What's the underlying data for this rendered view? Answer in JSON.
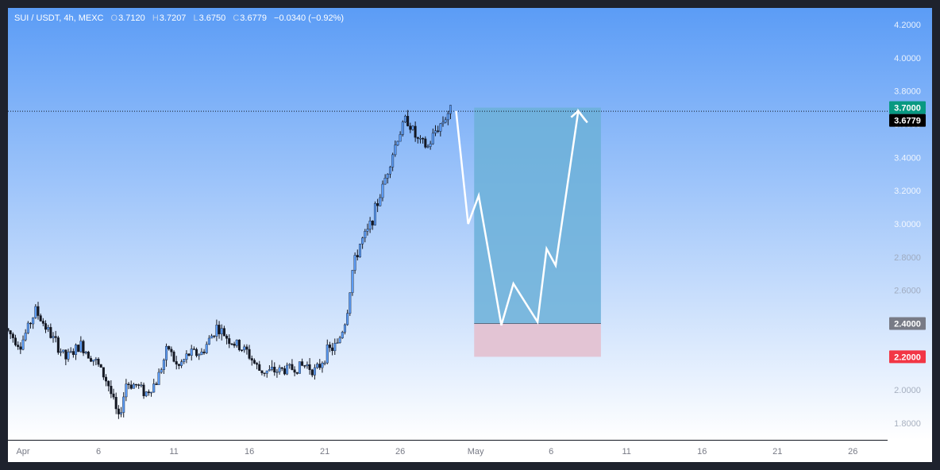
{
  "legend": {
    "symbol": "SUI / USDT, 4h, MEXC",
    "o_label": "O",
    "o_value": "3.7120",
    "h_label": "H",
    "h_value": "3.7207",
    "l_label": "L",
    "l_value": "3.6750",
    "c_label": "C",
    "c_value": "3.6779",
    "change": "−0.0340 (−0.92%)"
  },
  "colors": {
    "bg_top": "#5b9cf6",
    "bg_bottom": "#ffffff",
    "candle": "#5b9cf6",
    "profit_zone": "#6cb0d8",
    "loss_zone": "#e3c4d4",
    "target_badge": "#089981",
    "current_badge": "#000000",
    "entry_badge": "#787b86",
    "stop_badge": "#f23645",
    "path": "#ffffff"
  },
  "chart_data": {
    "type": "candlestick",
    "ylim": [
      1.7,
      4.3
    ],
    "y_ticks": [
      "1.8000",
      "2.0000",
      "2.2000",
      "2.4000",
      "2.6000",
      "2.8000",
      "3.0000",
      "3.2000",
      "3.4000",
      "3.6000",
      "3.8000",
      "4.0000",
      "4.2000"
    ],
    "y_tick_values": [
      1.8,
      2.0,
      2.2,
      2.4,
      2.6,
      2.8,
      3.0,
      3.2,
      3.4,
      3.6,
      3.8,
      4.0,
      4.2
    ],
    "x_range": [
      0,
      58.3
    ],
    "x_ticks": [
      {
        "label": "Apr",
        "day": 1
      },
      {
        "label": "6",
        "day": 6
      },
      {
        "label": "11",
        "day": 11
      },
      {
        "label": "16",
        "day": 16
      },
      {
        "label": "21",
        "day": 21
      },
      {
        "label": "26",
        "day": 26
      },
      {
        "label": "May",
        "day": 31
      },
      {
        "label": "6",
        "day": 36
      },
      {
        "label": "11",
        "day": 41
      },
      {
        "label": "16",
        "day": 46
      },
      {
        "label": "21",
        "day": 51
      },
      {
        "label": "26",
        "day": 56
      }
    ],
    "price_path": [
      [
        0.0,
        2.37
      ],
      [
        1.0,
        2.27
      ],
      [
        2.0,
        2.48
      ],
      [
        3.0,
        2.33
      ],
      [
        4.0,
        2.19
      ],
      [
        5.0,
        2.27
      ],
      [
        6.0,
        2.17
      ],
      [
        6.8,
        2.04
      ],
      [
        7.5,
        1.82
      ],
      [
        8.0,
        2.04
      ],
      [
        8.7,
        2.03
      ],
      [
        9.3,
        1.98
      ],
      [
        10.0,
        2.05
      ],
      [
        10.8,
        2.26
      ],
      [
        11.4,
        2.13
      ],
      [
        12.2,
        2.22
      ],
      [
        13.0,
        2.22
      ],
      [
        14.0,
        2.38
      ],
      [
        15.0,
        2.29
      ],
      [
        16.0,
        2.23
      ],
      [
        16.8,
        2.12
      ],
      [
        17.5,
        2.11
      ],
      [
        18.3,
        2.12
      ],
      [
        19.0,
        2.13
      ],
      [
        20.0,
        2.15
      ],
      [
        20.6,
        2.11
      ],
      [
        21.3,
        2.23
      ],
      [
        22.0,
        2.27
      ],
      [
        22.6,
        2.44
      ],
      [
        23.0,
        2.72
      ],
      [
        23.5,
        2.88
      ],
      [
        24.0,
        2.95
      ],
      [
        24.5,
        3.08
      ],
      [
        25.0,
        3.22
      ],
      [
        25.5,
        3.38
      ],
      [
        26.0,
        3.52
      ],
      [
        26.6,
        3.64
      ],
      [
        27.3,
        3.5
      ],
      [
        28.0,
        3.46
      ],
      [
        28.5,
        3.56
      ],
      [
        29.0,
        3.62
      ],
      [
        29.4,
        3.68
      ]
    ],
    "current_price": 3.6779,
    "position": {
      "type": "long",
      "start_day": 30.9,
      "end_day": 39.3,
      "target": 3.7,
      "entry": 2.4,
      "stop": 2.2,
      "target_label": "3.7000",
      "current_label": "3.6779",
      "entry_label": "2.4000",
      "stop_label": "2.2000"
    },
    "projection_path": [
      [
        29.7,
        3.68
      ],
      [
        30.5,
        3.0
      ],
      [
        31.2,
        3.17
      ],
      [
        32.7,
        2.39
      ],
      [
        33.5,
        2.64
      ],
      [
        35.1,
        2.41
      ],
      [
        35.7,
        2.85
      ],
      [
        36.3,
        2.75
      ],
      [
        37.8,
        3.68
      ],
      [
        38.4,
        3.61
      ]
    ]
  }
}
